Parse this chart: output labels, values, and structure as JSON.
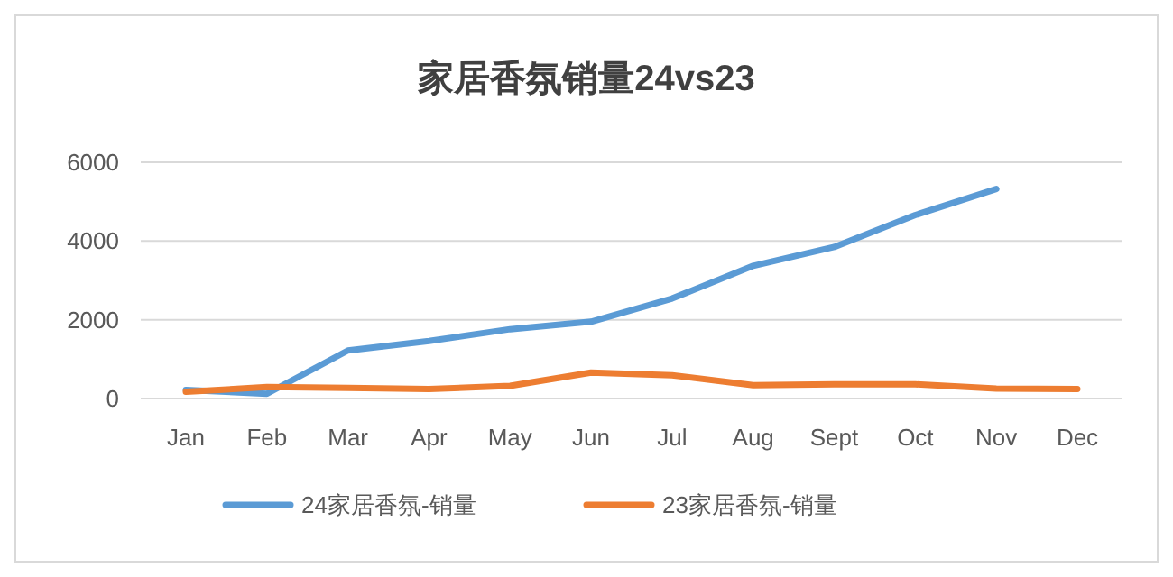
{
  "chart_data": {
    "type": "line",
    "title": "家居香氛销量24vs23",
    "categories": [
      "Jan",
      "Feb",
      "Mar",
      "Apr",
      "May",
      "Jun",
      "Jul",
      "Aug",
      "Sept",
      "Oct",
      "Nov",
      "Dec"
    ],
    "series": [
      {
        "name": "24家居香氛-销量",
        "color": "#5b9bd5",
        "values": [
          220,
          120,
          1220,
          1460,
          1760,
          1950,
          2540,
          3370,
          3850,
          4660,
          5320,
          null
        ]
      },
      {
        "name": "23家居香氛-销量",
        "color": "#ed7d31",
        "values": [
          170,
          290,
          270,
          240,
          320,
          660,
          590,
          340,
          360,
          360,
          250,
          240
        ]
      }
    ],
    "ylim": [
      0,
      6000
    ],
    "yticks": [
      0,
      2000,
      4000,
      6000
    ],
    "grid": "y",
    "legend": "bottom",
    "marker": "none",
    "line_style": "solid"
  }
}
